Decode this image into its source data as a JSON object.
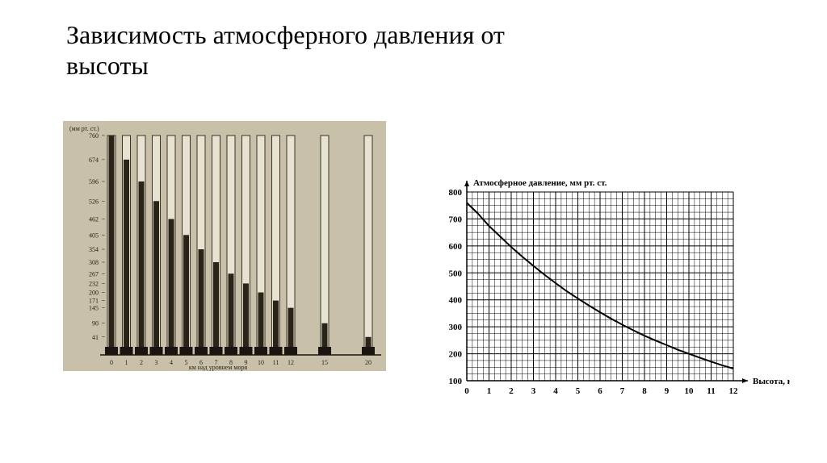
{
  "title_line1": "Зависимость атмосферного давления от",
  "title_line2": "высоты",
  "barometric_panel": {
    "type": "bar",
    "y_label": "(мм рт. ст.)",
    "x_label": "км над уровнем моря",
    "y_ticks": [
      760,
      674,
      596,
      526,
      462,
      405,
      354,
      308,
      267,
      232,
      200,
      171,
      145,
      90,
      41
    ],
    "x_ticks": [
      0,
      1,
      2,
      3,
      4,
      5,
      6,
      7,
      8,
      9,
      10,
      11,
      12,
      15,
      20
    ],
    "mercury_heights": [
      760,
      674,
      596,
      526,
      462,
      405,
      354,
      308,
      267,
      232,
      200,
      171,
      145,
      90,
      41
    ],
    "background_color": "#c8c0a8",
    "tube_outer_color": "#3a3428",
    "tube_inner_color": "#e8e2d0",
    "mercury_color": "#2a2418",
    "base_color": "#1a1510",
    "text_color": "#2a2418",
    "font_size": 8,
    "tube_full_height": 760
  },
  "line_chart": {
    "type": "line",
    "title": "Атмосферное давление, мм рт. ст.",
    "xlabel": "Высота, км",
    "xlim": [
      0,
      12
    ],
    "ylim": [
      100,
      800
    ],
    "x_ticks": [
      0,
      1,
      2,
      3,
      4,
      5,
      6,
      7,
      8,
      9,
      10,
      11,
      12
    ],
    "y_ticks": [
      100,
      200,
      300,
      400,
      500,
      600,
      700,
      800
    ],
    "data_points": [
      [
        0,
        760
      ],
      [
        0.5,
        720
      ],
      [
        1,
        674
      ],
      [
        1.5,
        635
      ],
      [
        2,
        596
      ],
      [
        2.5,
        560
      ],
      [
        3,
        526
      ],
      [
        3.5,
        493
      ],
      [
        4,
        462
      ],
      [
        4.5,
        432
      ],
      [
        5,
        405
      ],
      [
        5.5,
        379
      ],
      [
        6,
        354
      ],
      [
        6.5,
        330
      ],
      [
        7,
        308
      ],
      [
        7.5,
        287
      ],
      [
        8,
        267
      ],
      [
        8.5,
        249
      ],
      [
        9,
        232
      ],
      [
        9.5,
        215
      ],
      [
        10,
        200
      ],
      [
        10.5,
        185
      ],
      [
        11,
        171
      ],
      [
        11.5,
        157
      ],
      [
        12,
        145
      ]
    ],
    "grid_color": "#000000",
    "grid_stroke_width": 0.5,
    "line_color": "#000000",
    "line_width": 2,
    "background_color": "#ffffff",
    "label_fontsize": 11,
    "tick_fontsize": 11,
    "minor_div": 4
  }
}
